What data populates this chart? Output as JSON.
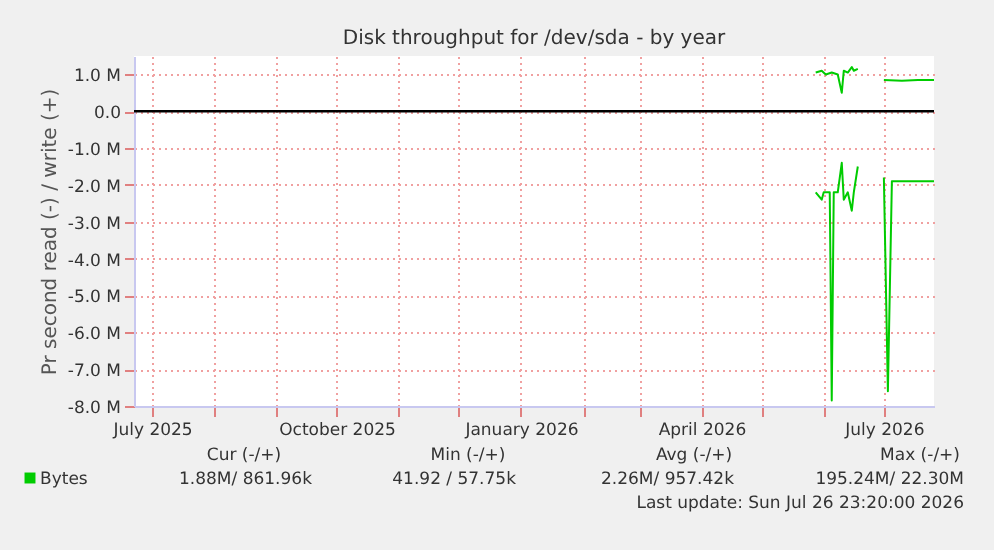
{
  "chart_data": {
    "type": "line",
    "title": "Disk throughput for /dev/sda - by year",
    "ylabel": "Pr second read (-) / write (+)",
    "xlim": [
      "2025-06-22",
      "2026-07-26"
    ],
    "xticks": [
      {
        "value": "2025-07-01",
        "label": "July 2025"
      },
      {
        "value": "2025-08-01",
        "label": null
      },
      {
        "value": "2025-09-01",
        "label": null
      },
      {
        "value": "2025-10-01",
        "label": "October 2025"
      },
      {
        "value": "2025-11-01",
        "label": null
      },
      {
        "value": "2025-12-01",
        "label": null
      },
      {
        "value": "2026-01-01",
        "label": "January 2026"
      },
      {
        "value": "2026-02-01",
        "label": null
      },
      {
        "value": "2026-03-01",
        "label": null
      },
      {
        "value": "2026-04-01",
        "label": "April 2026"
      },
      {
        "value": "2026-05-01",
        "label": null
      },
      {
        "value": "2026-06-01",
        "label": null
      },
      {
        "value": "2026-07-01",
        "label": "July 2026"
      }
    ],
    "ylim": [
      -8000000,
      1500000
    ],
    "yticks": [
      {
        "value": 1000000,
        "label": "1.0 M"
      },
      {
        "value": 0,
        "label": "0.0"
      },
      {
        "value": -1000000,
        "label": "-1.0 M"
      },
      {
        "value": -2000000,
        "label": "-2.0 M"
      },
      {
        "value": -3000000,
        "label": "-3.0 M"
      },
      {
        "value": -4000000,
        "label": "-4.0 M"
      },
      {
        "value": -5000000,
        "label": "-5.0 M"
      },
      {
        "value": -6000000,
        "label": "-6.0 M"
      },
      {
        "value": -7000000,
        "label": "-7.0 M"
      },
      {
        "value": -8000000,
        "label": "-8.0 M"
      }
    ],
    "series": [
      {
        "name": "Bytes",
        "color": "#00cc00",
        "x": [
          "2026-05-28",
          "2026-05-31",
          "2026-06-02",
          "2026-06-05",
          "2026-06-08",
          "2026-06-10",
          "2026-06-11",
          "2026-06-13",
          "2026-06-15",
          "2026-06-16",
          "2026-06-18",
          "2026-06-19",
          "2026-07-01",
          "2026-07-10",
          "2026-07-18",
          "2026-07-26"
        ],
        "values": [
          1050000,
          1100000,
          1000000,
          1050000,
          1000000,
          500000,
          1100000,
          1050000,
          1200000,
          1100000,
          1150000,
          null,
          850000,
          830000,
          850000,
          850000
        ]
      },
      {
        "color": "#00cc00",
        "x": [
          "2026-05-28",
          "2026-05-31",
          "2026-06-01",
          "2026-06-04",
          "2026-06-05",
          "2026-06-06",
          "2026-06-08",
          "2026-06-10",
          "2026-06-11",
          "2026-06-13",
          "2026-06-15",
          "2026-06-16",
          "2026-06-18",
          "2026-06-19",
          "2026-07-01",
          "2026-07-03",
          "2026-07-05",
          "2026-07-26"
        ],
        "values": [
          -2200000,
          -2400000,
          -2200000,
          -2200000,
          -7850000,
          -2200000,
          -2200000,
          -1400000,
          -2400000,
          -2200000,
          -2700000,
          -2200000,
          -1500000,
          null,
          -1800000,
          -7600000,
          -1900000,
          -1900000
        ]
      }
    ],
    "ref_lines": [
      {
        "axis": "y",
        "value": 0,
        "color": "#000000"
      }
    ],
    "annotations": [
      "Cur (-/+)",
      "Min (-/+)",
      "Avg (-/+)",
      "Max (-/+)",
      "1.88M/   861.96k",
      "41.92 /   57.75k",
      "2.26M/  957.42k",
      "195.24M/   22.30M",
      "Last update: Sun Jul 26 23:20:00 2026"
    ],
    "grid": true,
    "legend": "bottom left"
  }
}
